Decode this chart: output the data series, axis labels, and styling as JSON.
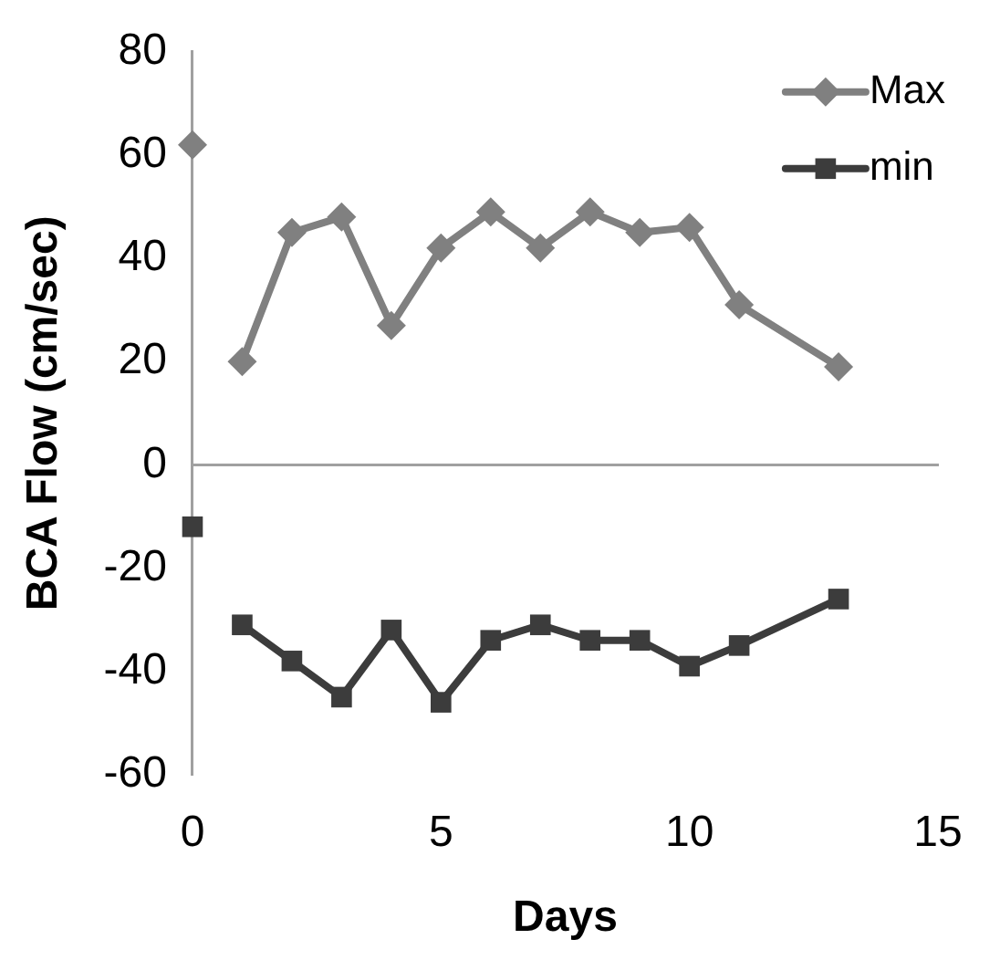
{
  "chart_data": {
    "type": "line",
    "xlabel": "Days",
    "ylabel": "BCA Flow (cm/sec)",
    "xlim": [
      0,
      15
    ],
    "xticks": [
      0,
      5,
      10,
      15
    ],
    "ylim": [
      -60,
      80
    ],
    "yticks": [
      -60,
      -40,
      -20,
      0,
      20,
      40,
      60,
      80
    ],
    "x": [
      0,
      0.5,
      1,
      2,
      3,
      4,
      5,
      6,
      7,
      8,
      9,
      10,
      11,
      13
    ],
    "series": [
      {
        "name": "Max",
        "color": "#808080",
        "marker": "diamond",
        "values": [
          62,
          null,
          20,
          45,
          48,
          27,
          42,
          49,
          42,
          49,
          45,
          46,
          31,
          19
        ]
      },
      {
        "name": "min",
        "color": "#3c3c3c",
        "marker": "square",
        "values": [
          -12,
          null,
          -31,
          -38,
          -45,
          -32,
          -46,
          -34,
          -31,
          -34,
          -34,
          -39,
          -35,
          -26
        ]
      }
    ],
    "legend": "top right"
  }
}
